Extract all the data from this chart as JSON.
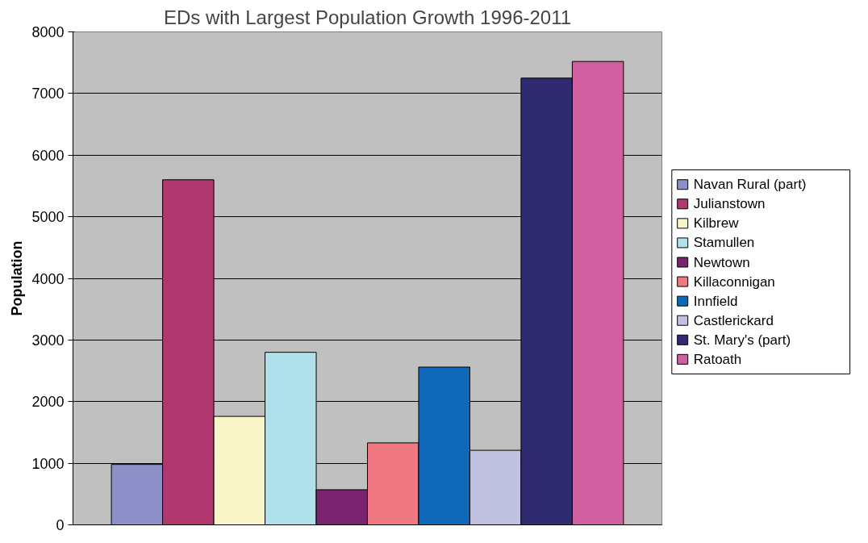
{
  "chart_data": {
    "type": "bar",
    "title": "EDs with Largest Population Growth 1996-2011",
    "ylabel": "Population",
    "categories": [
      null
    ],
    "series": [
      {
        "name": "Navan Rural (part)",
        "color": "#8c8fc8",
        "values": [
          980
        ]
      },
      {
        "name": "Julianstown",
        "color": "#b0386e",
        "values": [
          5600
        ]
      },
      {
        "name": "Kilbrew",
        "color": "#f8f6c8",
        "values": [
          1760
        ]
      },
      {
        "name": "Stamullen",
        "color": "#b0e0ea",
        "values": [
          2800
        ]
      },
      {
        "name": "Newtown",
        "color": "#7a2470",
        "values": [
          570
        ]
      },
      {
        "name": "Killaconnigan",
        "color": "#f07880",
        "values": [
          1330
        ]
      },
      {
        "name": "Innfield",
        "color": "#1068b8",
        "values": [
          2560
        ]
      },
      {
        "name": "Castlerickard",
        "color": "#c0c0e0",
        "values": [
          1210
        ]
      },
      {
        "name": "St. Mary's (part)",
        "color": "#302a70",
        "values": [
          7250
        ]
      },
      {
        "name": "Ratoath",
        "color": "#d060a0",
        "values": [
          7520
        ]
      }
    ],
    "ylim": [
      0,
      8000
    ],
    "yticks": [
      0,
      1000,
      2000,
      3000,
      4000,
      5000,
      6000,
      7000,
      8000
    ],
    "grid": "y",
    "legend": "right",
    "tick_labels": "y"
  }
}
